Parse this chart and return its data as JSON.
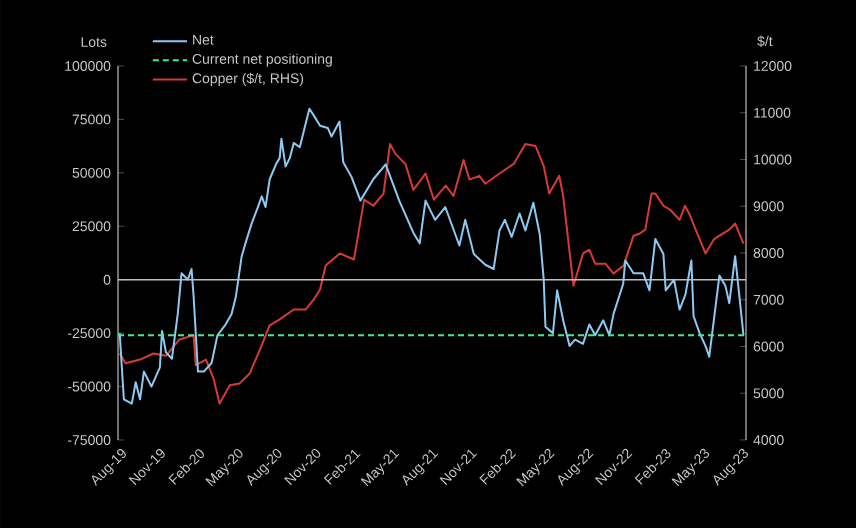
{
  "chart_data": {
    "type": "line",
    "ylabel": "Lots",
    "y2label": "$/t",
    "xlim": [
      "2019-08-01",
      "2023-08-16"
    ],
    "xticks": [
      {
        "value": "2019-08",
        "label": "Aug-19"
      },
      {
        "value": "2019-11",
        "label": "Nov-19"
      },
      {
        "value": "2020-02",
        "label": "Feb-20"
      },
      {
        "value": "2020-05",
        "label": "May-20"
      },
      {
        "value": "2020-08",
        "label": "Aug-20"
      },
      {
        "value": "2020-11",
        "label": "Nov-20"
      },
      {
        "value": "2021-02",
        "label": "Feb-21"
      },
      {
        "value": "2021-05",
        "label": "May-21"
      },
      {
        "value": "2021-08",
        "label": "Aug-21"
      },
      {
        "value": "2021-11",
        "label": "Nov-21"
      },
      {
        "value": "2022-02",
        "label": "Feb-22"
      },
      {
        "value": "2022-05",
        "label": "May-22"
      },
      {
        "value": "2022-08",
        "label": "Aug-22"
      },
      {
        "value": "2022-11",
        "label": "Nov-22"
      },
      {
        "value": "2023-02",
        "label": "Feb-23"
      },
      {
        "value": "2023-05",
        "label": "May-23"
      },
      {
        "value": "2023-08",
        "label": "Aug-23"
      }
    ],
    "ylim": [
      -75000,
      100000
    ],
    "yticks": [
      -75000,
      -50000,
      -25000,
      0,
      25000,
      50000,
      75000,
      100000
    ],
    "y2lim": [
      4000,
      12000
    ],
    "y2ticks": [
      4000,
      5000,
      6000,
      7000,
      8000,
      9000,
      10000,
      11000,
      12000
    ],
    "legend": "top",
    "grid": false,
    "ref_lines": [
      {
        "axis": "y",
        "value": 0,
        "color": "#bfbfbf"
      }
    ],
    "series": [
      {
        "name": "Net",
        "color": "#8ec9f2",
        "x": [
          "2019-08-05",
          "2019-08-15",
          "2019-09-03",
          "2019-09-12",
          "2019-09-22",
          "2019-10-01",
          "2019-10-19",
          "2019-11-08",
          "2019-11-13",
          "2019-11-22",
          "2019-12-06",
          "2019-12-20",
          "2019-12-29",
          "2020-01-13",
          "2020-01-22",
          "2020-01-27",
          "2020-02-06",
          "2020-02-19",
          "2020-03-08",
          "2020-03-22",
          "2020-04-10",
          "2020-04-24",
          "2020-05-04",
          "2020-05-18",
          "2020-05-27",
          "2020-06-10",
          "2020-06-25",
          "2020-07-04",
          "2020-07-13",
          "2020-07-23",
          "2020-08-07",
          "2020-08-16",
          "2020-08-20",
          "2020-08-30",
          "2020-09-09",
          "2020-09-18",
          "2020-10-02",
          "2020-10-16",
          "2020-10-25",
          "2020-11-04",
          "2020-11-19",
          "2020-12-07",
          "2020-12-16",
          "2021-01-04",
          "2021-01-13",
          "2021-02-02",
          "2021-02-21",
          "2021-03-23",
          "2021-04-21",
          "2021-05-23",
          "2021-06-25",
          "2021-07-10",
          "2021-07-24",
          "2021-08-16",
          "2021-09-09",
          "2021-10-12",
          "2021-10-26",
          "2021-11-15",
          "2021-12-12",
          "2022-01-01",
          "2022-01-15",
          "2022-01-28",
          "2022-02-12",
          "2022-03-01",
          "2022-03-15",
          "2022-04-03",
          "2022-04-18",
          "2022-04-27",
          "2022-05-01",
          "2022-05-19",
          "2022-05-29",
          "2022-06-12",
          "2022-06-27",
          "2022-07-10",
          "2022-07-29",
          "2022-08-13",
          "2022-08-27",
          "2022-09-15",
          "2022-09-29",
          "2022-10-09",
          "2022-11-01",
          "2022-11-06",
          "2022-11-25",
          "2022-12-18",
          "2023-01-02",
          "2023-01-16",
          "2023-02-04",
          "2023-02-09",
          "2023-02-27",
          "2023-03-12",
          "2023-03-26",
          "2023-04-09",
          "2023-04-14",
          "2023-04-28",
          "2023-05-12",
          "2023-05-21",
          "2023-06-01",
          "2023-06-14",
          "2023-06-28",
          "2023-07-07",
          "2023-07-21",
          "2023-08-10"
        ],
        "values": [
          -25000,
          -56000,
          -58000,
          -48000,
          -56000,
          -43000,
          -50000,
          -41000,
          -24000,
          -34000,
          -37000,
          -16000,
          3000,
          0,
          5000,
          -8000,
          -43000,
          -43000,
          -39000,
          -26000,
          -21000,
          -16000,
          -8000,
          11000,
          17000,
          26000,
          34000,
          39000,
          34000,
          47000,
          54000,
          57000,
          66000,
          53000,
          57000,
          64000,
          62000,
          73000,
          80000,
          77000,
          72000,
          71000,
          67000,
          74000,
          55000,
          48000,
          37000,
          47000,
          54000,
          37000,
          22000,
          17000,
          37000,
          28000,
          34000,
          16000,
          28000,
          12000,
          7000,
          5000,
          23000,
          28000,
          20000,
          31000,
          23000,
          36000,
          21000,
          0,
          -22000,
          -25000,
          -5000,
          -19000,
          -31000,
          -28000,
          -30000,
          -21000,
          -26000,
          -19000,
          -26000,
          -16000,
          -2000,
          9000,
          3000,
          3000,
          -5000,
          19000,
          12000,
          -5000,
          0,
          -14000,
          -7000,
          9000,
          -17000,
          -25000,
          -31000,
          -36000,
          -19000,
          2000,
          -3000,
          -11000,
          11000,
          -26000
        ]
      },
      {
        "name": "Current net positioning",
        "color": "#3ded8c",
        "line_style": "dashed",
        "x": [
          "2019-08-01",
          "2023-08-16"
        ],
        "values": [
          -26000,
          -26000
        ]
      },
      {
        "name": "Copper ($/t, RHS)",
        "color": "#d63a35",
        "axis": "y2",
        "x": [
          "2019-08-05",
          "2019-08-19",
          "2019-09-22",
          "2019-10-24",
          "2019-11-22",
          "2019-12-24",
          "2020-01-27",
          "2020-02-01",
          "2020-02-24",
          "2020-03-13",
          "2020-03-27",
          "2020-04-20",
          "2020-05-13",
          "2020-06-06",
          "2020-06-30",
          "2020-07-23",
          "2020-08-16",
          "2020-09-18",
          "2020-10-16",
          "2020-11-04",
          "2020-11-19",
          "2020-12-02",
          "2021-01-05",
          "2021-02-07",
          "2021-03-01",
          "2021-03-23",
          "2021-04-16",
          "2021-05-01",
          "2021-05-14",
          "2021-06-07",
          "2021-06-25",
          "2021-07-24",
          "2021-08-13",
          "2021-09-10",
          "2021-09-28",
          "2021-10-22",
          "2021-11-05",
          "2021-11-28",
          "2021-12-12",
          "2022-01-15",
          "2022-02-17",
          "2022-03-01",
          "2022-03-15",
          "2022-04-08",
          "2022-04-27",
          "2022-05-10",
          "2022-06-03",
          "2022-06-12",
          "2022-07-06",
          "2022-07-29",
          "2022-08-13",
          "2022-08-27",
          "2022-09-20",
          "2022-10-09",
          "2022-11-02",
          "2022-11-25",
          "2022-12-09",
          "2022-12-23",
          "2023-01-07",
          "2023-01-16",
          "2023-02-04",
          "2023-02-18",
          "2023-03-12",
          "2023-03-25",
          "2023-04-04",
          "2023-04-19",
          "2023-05-12",
          "2023-06-01",
          "2023-06-14",
          "2023-07-07",
          "2023-07-21",
          "2023-08-10"
        ],
        "values": [
          5850,
          5640,
          5720,
          5850,
          5800,
          6150,
          6240,
          5600,
          5720,
          5300,
          4780,
          5170,
          5210,
          5420,
          5940,
          6450,
          6580,
          6790,
          6790,
          7000,
          7220,
          7730,
          7990,
          7860,
          9140,
          9010,
          9270,
          10330,
          10120,
          9900,
          9350,
          9700,
          9140,
          9440,
          9220,
          9990,
          9570,
          9650,
          9480,
          9700,
          9910,
          10120,
          10330,
          10290,
          9860,
          9270,
          9650,
          9220,
          7300,
          7990,
          8070,
          7770,
          7770,
          7560,
          7730,
          8370,
          8410,
          8500,
          9270,
          9270,
          9010,
          8930,
          8710,
          9010,
          8840,
          8500,
          7990,
          8290,
          8370,
          8500,
          8630,
          8200
        ]
      }
    ]
  }
}
